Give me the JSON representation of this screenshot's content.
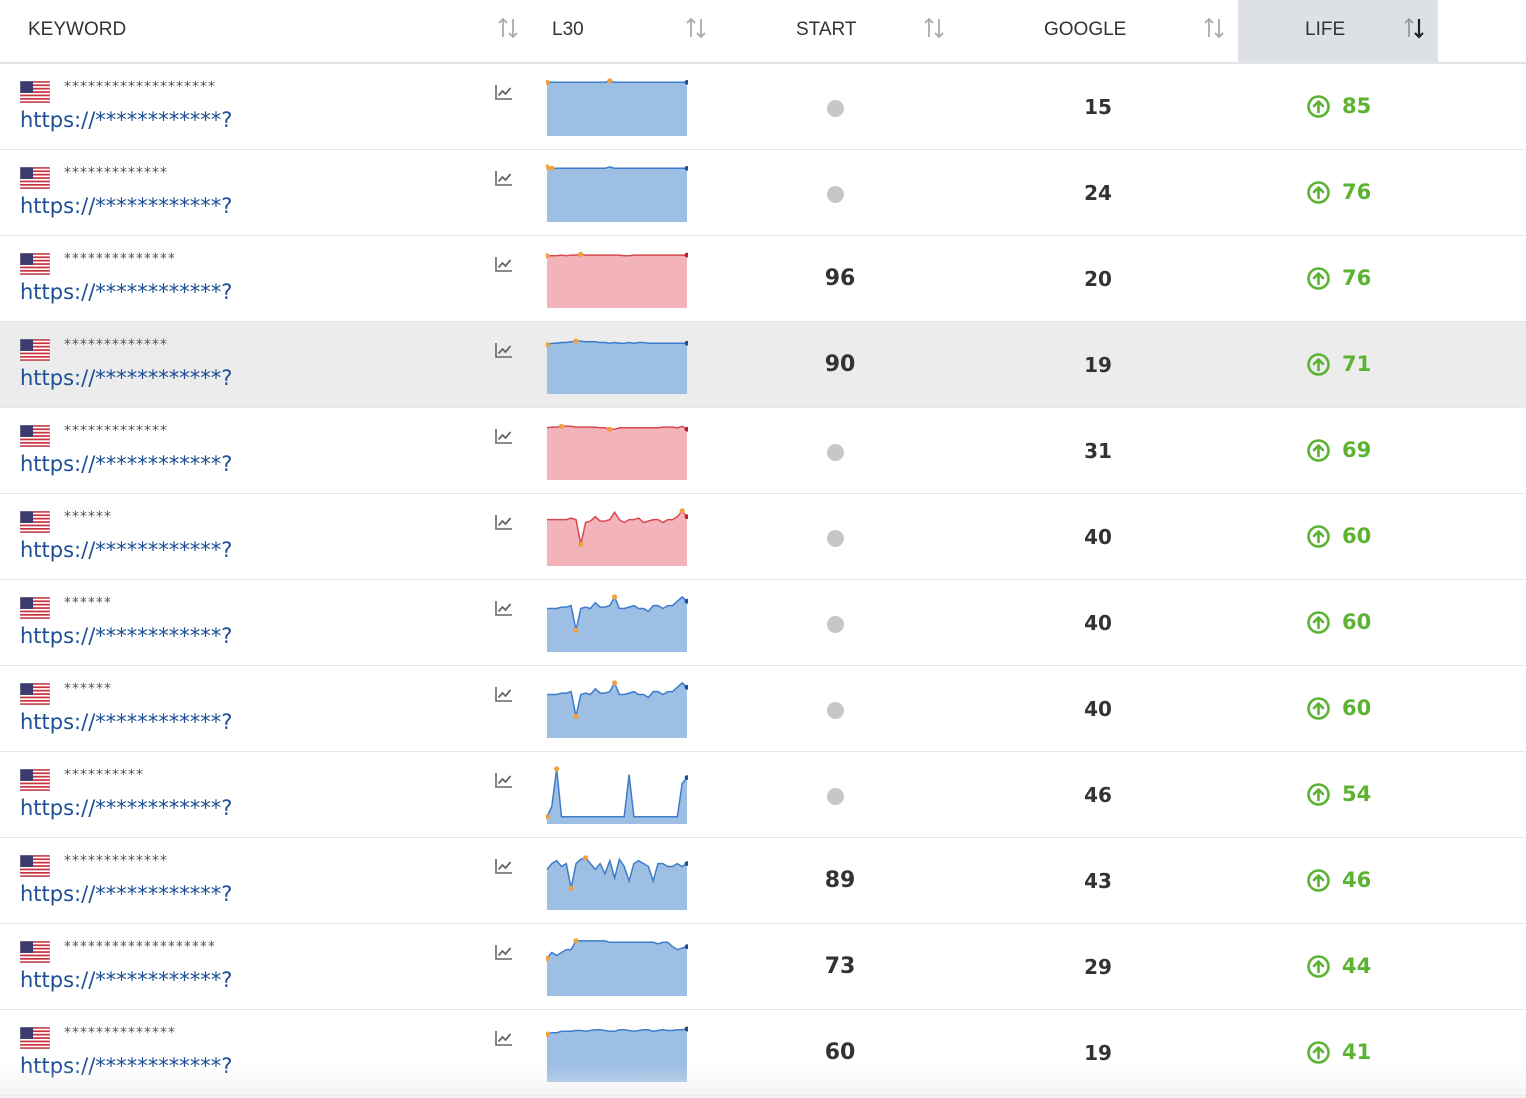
{
  "header": {
    "keyword": "KEYWORD",
    "l30": "L30",
    "start": "START",
    "google": "GOOGLE",
    "life": "LIFE"
  },
  "colors": {
    "blue_fill": "#9dbfe4",
    "blue_line": "#3d7ccb",
    "red_fill": "#f2b3ba",
    "red_line": "#d9484f",
    "orange_point": "#f0a040",
    "green": "#5cb332",
    "url": "#1c4f93"
  },
  "rows": [
    {
      "keyword": "*******************",
      "url": "https://************?",
      "start": "",
      "google": "15",
      "life": "85",
      "trend": "blue",
      "l30": [
        3,
        3,
        3,
        3,
        3,
        3,
        3,
        3,
        3,
        3,
        3,
        3,
        3,
        2,
        3,
        3,
        3,
        3,
        3,
        3,
        3,
        3,
        3,
        3,
        3,
        3,
        3,
        3,
        3,
        3
      ],
      "highlighted": false
    },
    {
      "keyword": "*************",
      "url": "https://************?",
      "start": "",
      "google": "24",
      "life": "76",
      "trend": "blue",
      "l30": [
        2,
        3,
        3,
        3,
        3,
        3,
        3,
        3,
        3,
        3,
        3,
        3,
        3,
        2,
        3,
        3,
        3,
        3,
        3,
        3,
        3,
        3,
        3,
        3,
        3,
        3,
        3,
        3,
        3,
        3
      ],
      "highlighted": false
    },
    {
      "keyword": "**************",
      "url": "https://************?",
      "start": "96",
      "google": "20",
      "life": "76",
      "trend": "red",
      "l30": [
        4,
        4,
        4,
        3.5,
        4,
        3.5,
        3.5,
        3,
        3.5,
        3.5,
        3.5,
        3.5,
        3.5,
        3.5,
        3.5,
        3.5,
        4,
        4,
        3.5,
        3.5,
        3.5,
        3.5,
        3.5,
        3.5,
        3.5,
        3.5,
        3.5,
        3.5,
        3.5,
        3.5
      ],
      "highlighted": false
    },
    {
      "keyword": "*************",
      "url": "https://************?",
      "start": "90",
      "google": "19",
      "life": "71",
      "trend": "blue",
      "l30": [
        6,
        5,
        5,
        4.5,
        4.5,
        4,
        3.5,
        3.5,
        4,
        4,
        4,
        4.5,
        4.5,
        5,
        4.5,
        5,
        5,
        4.5,
        5,
        4.5,
        4.5,
        5,
        5,
        5,
        5,
        5,
        5,
        5,
        5,
        5
      ],
      "highlighted": true
    },
    {
      "keyword": "*************",
      "url": "https://************?",
      "start": "",
      "google": "31",
      "life": "69",
      "trend": "red",
      "l30": [
        4,
        3.5,
        3.5,
        3,
        3,
        3,
        3.5,
        3.5,
        3.5,
        3.5,
        3.5,
        4,
        4,
        5,
        5,
        4,
        4,
        4,
        4,
        4,
        4,
        4,
        4,
        4,
        3.5,
        3.5,
        3.5,
        4,
        3,
        5
      ],
      "highlighted": false
    },
    {
      "keyword": "******",
      "url": "https://************?",
      "start": "",
      "google": "40",
      "life": "60",
      "trend": "red",
      "l30": [
        8,
        8,
        8,
        8,
        8,
        7,
        8,
        25,
        10,
        9,
        6,
        9,
        9,
        8,
        3,
        8,
        10,
        8,
        8,
        7,
        10,
        9,
        8,
        8,
        10,
        8,
        8,
        6,
        2,
        6
      ],
      "highlighted": false
    },
    {
      "keyword": "******",
      "url": "https://************?",
      "start": "",
      "google": "40",
      "life": "60",
      "trend": "blue",
      "l30": [
        10,
        10,
        10,
        9,
        9,
        8,
        25,
        10,
        9,
        10,
        6,
        9,
        9,
        8,
        2,
        10,
        10,
        9,
        8,
        10,
        10,
        12,
        8,
        8,
        10,
        8,
        8,
        5,
        2,
        5
      ],
      "highlighted": false
    },
    {
      "keyword": "******",
      "url": "https://************?",
      "start": "",
      "google": "40",
      "life": "60",
      "trend": "blue",
      "l30": [
        10,
        10,
        10,
        9,
        9,
        8,
        25,
        10,
        9,
        10,
        6,
        9,
        9,
        8,
        2,
        10,
        10,
        9,
        8,
        10,
        10,
        12,
        8,
        8,
        10,
        8,
        8,
        5,
        2,
        5
      ],
      "highlighted": false
    },
    {
      "keyword": "**********",
      "url": "https://************?",
      "start": "",
      "google": "46",
      "life": "54",
      "trend": "blue",
      "l30": [
        35,
        28,
        2,
        35,
        35,
        35,
        35,
        35,
        35,
        35,
        35,
        35,
        35,
        35,
        35,
        35,
        35,
        6,
        35,
        35,
        35,
        35,
        35,
        35,
        35,
        35,
        35,
        35,
        12,
        8
      ],
      "highlighted": false
    },
    {
      "keyword": "*************",
      "url": "https://************?",
      "start": "89",
      "google": "43",
      "life": "46",
      "trend": "blue",
      "l30": [
        12,
        8,
        6,
        10,
        8,
        25,
        8,
        5,
        4,
        8,
        12,
        8,
        15,
        6,
        18,
        5,
        10,
        20,
        8,
        6,
        8,
        10,
        20,
        8,
        8,
        10,
        10,
        8,
        10,
        8
      ],
      "highlighted": false
    },
    {
      "keyword": "*******************",
      "url": "https://************?",
      "start": "73",
      "google": "29",
      "life": "44",
      "trend": "blue",
      "l30": [
        14,
        10,
        12,
        10,
        8,
        8,
        2,
        2,
        2,
        2,
        2,
        2,
        2,
        3,
        3,
        3,
        3,
        3,
        3,
        3,
        3,
        3,
        3,
        4,
        3,
        3,
        6,
        8,
        7,
        6
      ],
      "highlighted": false
    },
    {
      "keyword": "**************",
      "url": "https://************?",
      "start": "60",
      "google": "19",
      "life": "41",
      "trend": "blue",
      "l30": [
        7,
        6,
        6,
        5,
        5,
        5,
        4.5,
        4.5,
        5,
        4.5,
        4,
        4,
        4.5,
        5,
        5,
        4,
        4,
        4.5,
        5,
        4.5,
        4,
        4,
        5,
        4.5,
        4,
        4.5,
        4.5,
        4,
        4,
        3.5
      ],
      "highlighted": false
    }
  ]
}
